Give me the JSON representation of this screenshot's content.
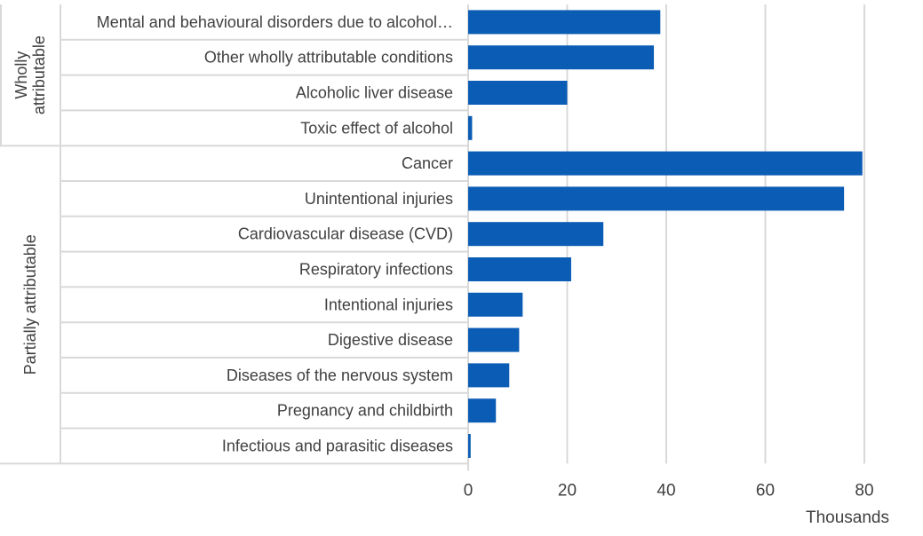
{
  "chart_data": {
    "type": "bar",
    "orientation": "horizontal",
    "title": "",
    "xlabel": "Thousands",
    "ylabel": "",
    "xlim": [
      0,
      80
    ],
    "xticks": [
      0,
      20,
      40,
      60,
      80
    ],
    "grid": true,
    "bar_color": "#0b5cb5",
    "groups": [
      {
        "name": "Wholly attributable",
        "label_lines": [
          "Wholly",
          "attributable"
        ],
        "categories": [
          "Mental and behavioural disorders due to alcohol…",
          "Other wholly attributable conditions",
          "Alcoholic liver disease",
          "Toxic effect of alcohol"
        ],
        "values": [
          38.8,
          37.5,
          20.0,
          0.8
        ]
      },
      {
        "name": "Partially attributable",
        "label_lines": [
          "Partially attributable"
        ],
        "categories": [
          "Cancer",
          "Unintentional injuries",
          "Cardiovascular disease (CVD)",
          "Respiratory infections",
          "Intentional injuries",
          "Digestive disease",
          "Diseases of the nervous system",
          "Pregnancy and childbirth",
          "Infectious and parasitic diseases"
        ],
        "values": [
          79.6,
          75.9,
          27.3,
          20.8,
          11.0,
          10.3,
          8.3,
          5.6,
          0.5
        ]
      }
    ]
  }
}
